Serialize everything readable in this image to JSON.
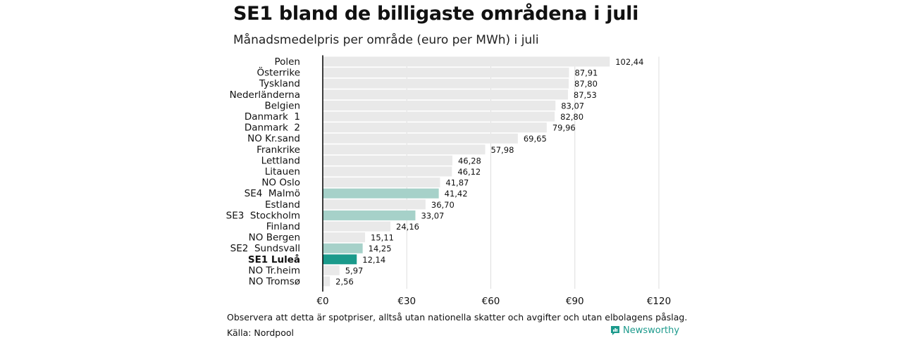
{
  "header": {
    "title": "SE1 bland de billigaste områdena i juli",
    "subtitle": "Månadsmedelpris per område (euro per MWh) i juli"
  },
  "footer": {
    "note": "Observera att detta är spotpriser, alltså utan nationella skatter och avgifter och utan elbolagens påslag.",
    "source": "Källa: Nordpool",
    "brand": "Newsworthy"
  },
  "colors": {
    "default_bar": "#e9e9e9",
    "sweden_bar": "#a6d1c9",
    "highlight_bar": "#1a9a8b",
    "grid": "#dddddd",
    "axis": "#000000",
    "brand": "#1c9a8c"
  },
  "chart_data": {
    "type": "bar",
    "orientation": "horizontal",
    "categories": [
      "Polen",
      "Österrike",
      "Tyskland",
      "Nederländerna",
      "Belgien",
      "Danmark  1",
      "Danmark  2",
      "NO Kr.sand",
      "Frankrike",
      "Lettland",
      "Litauen",
      "NO Oslo",
      "SE4  Malmö",
      "Estland",
      "SE3  Stockholm",
      "Finland",
      "NO Bergen",
      "SE2  Sundsvall",
      "SE1 Luleå",
      "NO Tr.heim",
      "NO Tromsø"
    ],
    "values": [
      102.44,
      87.91,
      87.8,
      87.53,
      83.07,
      82.8,
      79.96,
      69.65,
      57.98,
      46.28,
      46.12,
      41.87,
      41.42,
      36.7,
      33.07,
      24.16,
      15.11,
      14.25,
      12.14,
      5.97,
      2.56
    ],
    "value_labels": [
      "102,44",
      "87,91",
      "87,80",
      "87,53",
      "83,07",
      "82,80",
      "79,96",
      "69,65",
      "57,98",
      "46,28",
      "46,12",
      "41,87",
      "41,42",
      "36,70",
      "33,07",
      "24,16",
      "15,11",
      "14,25",
      "12,14",
      "5,97",
      "2,56"
    ],
    "bar_color_keys": [
      "default_bar",
      "default_bar",
      "default_bar",
      "default_bar",
      "default_bar",
      "default_bar",
      "default_bar",
      "default_bar",
      "default_bar",
      "default_bar",
      "default_bar",
      "default_bar",
      "sweden_bar",
      "default_bar",
      "sweden_bar",
      "default_bar",
      "default_bar",
      "sweden_bar",
      "highlight_bar",
      "default_bar",
      "default_bar"
    ],
    "bold_categories": [
      "SE1 Luleå"
    ],
    "xlim": [
      0,
      120
    ],
    "xticks": [
      0,
      30,
      60,
      90,
      120
    ],
    "xtick_labels": [
      "€0",
      "€30",
      "€60",
      "€90",
      "€120"
    ],
    "grid": true,
    "legend": "none"
  }
}
